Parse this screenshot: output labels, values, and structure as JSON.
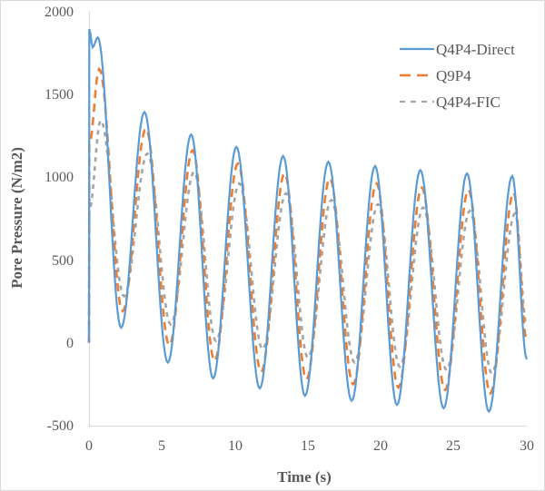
{
  "chart_data": {
    "type": "line",
    "title": "",
    "xlabel": "Time (s)",
    "ylabel": "Pore Pressure (N/m2)",
    "xlim": [
      0,
      30
    ],
    "ylim": [
      -500,
      2000
    ],
    "xticks": [
      0,
      5,
      10,
      15,
      20,
      25,
      30
    ],
    "yticks": [
      -500,
      0,
      500,
      1000,
      1500,
      2000
    ],
    "grid": false,
    "legend_position": "upper right",
    "series": [
      {
        "name": "Q4P4-Direct",
        "color": "#5b9bd5",
        "style": "solid",
        "keypoints": [
          [
            0,
            0
          ],
          [
            0.02,
            1890
          ],
          [
            0.25,
            1780
          ],
          [
            0.6,
            1840
          ],
          [
            2.2,
            90
          ],
          [
            3.8,
            1390
          ],
          [
            5.4,
            -120
          ],
          [
            7.0,
            1255
          ],
          [
            8.5,
            -215
          ],
          [
            10.1,
            1180
          ],
          [
            11.7,
            -275
          ],
          [
            13.3,
            1125
          ],
          [
            14.8,
            -320
          ],
          [
            16.4,
            1090
          ],
          [
            18.0,
            -350
          ],
          [
            19.6,
            1065
          ],
          [
            21.1,
            -375
          ],
          [
            22.7,
            1040
          ],
          [
            24.3,
            -395
          ],
          [
            25.9,
            1020
          ],
          [
            27.4,
            -415
          ],
          [
            29.0,
            1005
          ],
          [
            30.0,
            -100
          ]
        ]
      },
      {
        "name": "Q9P4",
        "color": "#ed7d31",
        "style": "dashed",
        "keypoints": [
          [
            0,
            0
          ],
          [
            0.02,
            1200
          ],
          [
            0.7,
            1650
          ],
          [
            2.3,
            190
          ],
          [
            3.9,
            1290
          ],
          [
            5.5,
            -15
          ],
          [
            7.1,
            1160
          ],
          [
            8.6,
            -110
          ],
          [
            10.2,
            1080
          ],
          [
            11.8,
            -175
          ],
          [
            13.4,
            1020
          ],
          [
            14.9,
            -220
          ],
          [
            16.5,
            990
          ],
          [
            18.1,
            -250
          ],
          [
            19.7,
            960
          ],
          [
            21.2,
            -270
          ],
          [
            22.8,
            935
          ],
          [
            24.4,
            -285
          ],
          [
            26.0,
            920
          ],
          [
            27.5,
            -305
          ],
          [
            29.1,
            905
          ],
          [
            30.0,
            10
          ]
        ]
      },
      {
        "name": "Q4P4-FIC",
        "color": "#a5a5a5",
        "style": "dashed-short",
        "keypoints": [
          [
            0,
            0
          ],
          [
            0.02,
            800
          ],
          [
            0.8,
            1340
          ],
          [
            2.4,
            280
          ],
          [
            4.0,
            1140
          ],
          [
            5.6,
            110
          ],
          [
            7.2,
            1030
          ],
          [
            8.7,
            10
          ],
          [
            10.3,
            960
          ],
          [
            11.9,
            -40
          ],
          [
            13.5,
            900
          ],
          [
            15.0,
            -90
          ],
          [
            16.6,
            860
          ],
          [
            18.2,
            -120
          ],
          [
            19.8,
            835
          ],
          [
            21.3,
            -145
          ],
          [
            22.9,
            815
          ],
          [
            24.5,
            -165
          ],
          [
            26.1,
            795
          ],
          [
            27.6,
            -185
          ],
          [
            29.2,
            780
          ],
          [
            30.0,
            100
          ]
        ]
      }
    ]
  },
  "legend": {
    "items": [
      {
        "label": "Q4P4-Direct"
      },
      {
        "label": "Q9P4"
      },
      {
        "label": "Q4P4-FIC"
      }
    ]
  },
  "axes": {
    "x_title": "Time (s)",
    "y_title": "Pore Pressure (N/m2)",
    "x_tick_labels": [
      "0",
      "5",
      "10",
      "15",
      "20",
      "25",
      "30"
    ],
    "y_tick_labels": [
      "-500",
      "0",
      "500",
      "1000",
      "1500",
      "2000"
    ]
  }
}
